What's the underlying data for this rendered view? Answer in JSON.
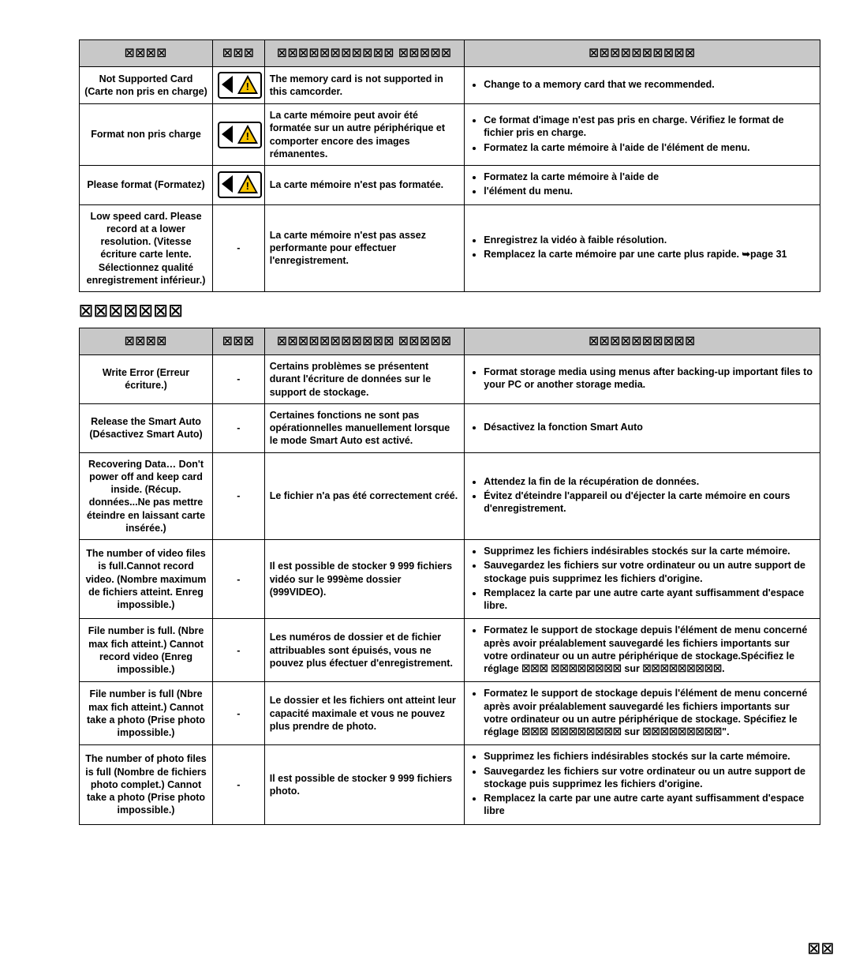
{
  "placeholders": {
    "h_message": "☒☒☒☒",
    "h_icon": "☒☒☒",
    "h_reason": "☒☒☒☒☒☒☒☒☒☒☒ ☒☒☒☒☒",
    "h_action": "☒☒☒☒☒☒☒☒☒☒",
    "section2_title": "☒☒☒☒☒☒☒",
    "page_number": "☒☒"
  },
  "table1": {
    "rows": [
      {
        "msg": "Not Supported Card (Carte non pris en charge)",
        "icon": "warn",
        "reason": "The memory card is not supported in this camcorder.",
        "actions": [
          "Change to a memory card that we recommended."
        ]
      },
      {
        "msg": "Format non pris charge",
        "icon": "warn",
        "reason": "La carte mémoire peut avoir été formatée sur un autre périphérique et comporter encore des images rémanentes.",
        "actions": [
          "Ce format d'image n'est pas pris en charge. Vérifiez le format de fichier pris en charge.",
          "Formatez la carte mémoire à l'aide de l'élément de menu."
        ]
      },
      {
        "msg": "Please format (Formatez)",
        "icon": "warn",
        "reason": "La carte mémoire n'est pas formatée.",
        "actions": [
          "Formatez la carte mémoire à l'aide de",
          "l'élément du menu."
        ]
      },
      {
        "msg": "Low speed card. Please record at a lower resolution. (Vitesse écriture carte lente. Sélectionnez qualité enregistrement inférieur.)",
        "icon": "-",
        "reason": "La carte mémoire n'est pas assez performante pour effectuer l'enregistrement.",
        "actions": [
          "Enregistrez la vidéo à faible résolution.",
          "Remplacez la carte mémoire par une carte plus rapide. ➥page 31"
        ]
      }
    ]
  },
  "table2": {
    "rows": [
      {
        "msg": "Write Error (Erreur écriture.)",
        "icon": "-",
        "reason": "Certains problèmes se présentent durant l'écriture de données sur le support de stockage.",
        "actions": [
          "Format storage media using menus after backing-up important files to your PC or another storage media."
        ]
      },
      {
        "msg": "Release the Smart Auto (Désactivez Smart Auto)",
        "icon": "-",
        "reason": "Certaines fonctions ne sont pas opérationnelles manuellement lorsque le mode Smart Auto est activé.",
        "actions": [
          "Désactivez la fonction Smart Auto"
        ]
      },
      {
        "msg": "Recovering Data… Don't power off and keep card inside. (Récup. données...Ne pas mettre éteindre en laissant carte insérée.)",
        "icon": "-",
        "reason": "Le fichier n'a pas été correctement créé.",
        "actions": [
          "Attendez la fin de la récupération de données.",
          "Évitez d'éteindre l'appareil ou d'éjecter la carte mémoire en cours d'enregistrement."
        ]
      },
      {
        "msg": "The number of video files is full.Cannot record video. (Nombre maximum de fichiers atteint. Enreg impossible.)",
        "icon": "-",
        "reason": "Il est possible de stocker 9 999 fichiers vidéo sur le 999ème dossier (999VIDEO).",
        "actions": [
          "Supprimez les fichiers indésirables stockés sur la carte mémoire.",
          "Sauvegardez les fichiers sur votre ordinateur ou un autre support de stockage puis supprimez les fichiers d'origine.",
          "Remplacez la carte par une autre carte ayant suffisamment d'espace libre."
        ]
      },
      {
        "msg": "File number is full. (Nbre max fich atteint.) Cannot record video (Enreg impossible.)",
        "icon": "-",
        "reason": "Les numéros de dossier et de fichier attribuables sont épuisés, vous ne pouvez plus éfectuer d'enregistrement.",
        "actions": [
          "Formatez le support de stockage depuis l'élément de menu concerné après avoir préalablement sauvegardé les fichiers importants sur votre ordinateur ou un autre périphérique de stockage.Spécifiez le réglage ☒☒☒ ☒☒☒☒☒☒☒☒ sur ☒☒☒☒☒☒☒☒☒."
        ]
      },
      {
        "msg": "File number is full (Nbre max fich atteint.) Cannot take a photo (Prise photo impossible.)",
        "icon": "-",
        "reason": "Le dossier et les fichiers ont atteint leur capacité maximale et vous ne pouvez plus prendre de photo.",
        "actions": [
          "Formatez le support de stockage depuis l'élément de menu concerné après avoir préalablement sauvegardé les fichiers importants sur votre ordinateur ou un autre périphérique de stockage. Spécifiez le réglage ☒☒☒ ☒☒☒☒☒☒☒☒ sur ☒☒☒☒☒☒☒☒☒\"."
        ]
      },
      {
        "msg": "The number of photo files is full (Nombre de fichiers photo complet.) Cannot take a photo (Prise photo impossible.)",
        "icon": "-",
        "reason": "Il est possible de stocker 9 999 fichiers photo.",
        "actions": [
          "Supprimez les fichiers indésirables stockés sur la carte mémoire.",
          "Sauvegardez les fichiers sur votre ordinateur ou un autre support de stockage puis supprimez les fichiers d'origine.",
          "Remplacez la carte par une autre carte ayant suffisamment d'espace libre"
        ]
      }
    ]
  }
}
